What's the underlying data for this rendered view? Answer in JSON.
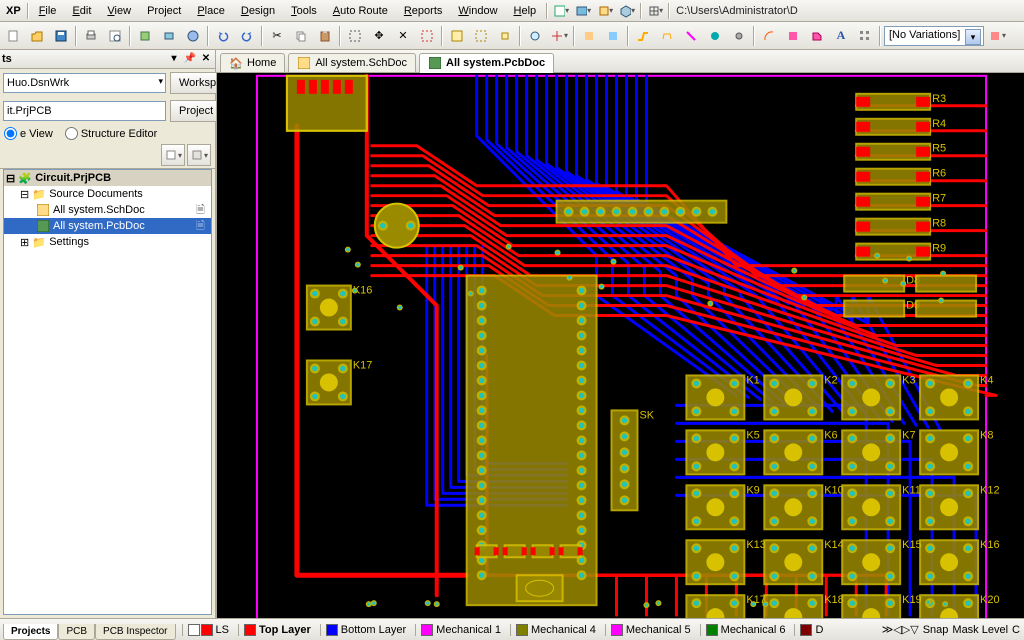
{
  "menu": {
    "dxp": "XP",
    "items": [
      "File",
      "Edit",
      "View",
      "Project",
      "Place",
      "Design",
      "Tools",
      "Auto Route",
      "Reports",
      "Window",
      "Help"
    ],
    "path": "C:\\Users\\Administrator\\D"
  },
  "toolbar": {
    "variations": "[No Variations]"
  },
  "panel": {
    "title": "ts",
    "workspace_value": "Huo.DsnWrk",
    "workspace_btn": "Workspace",
    "project_value": "it.PrjPCB",
    "project_btn": "Project",
    "radio_view": "e View",
    "radio_struct": "Structure Editor"
  },
  "tree": {
    "root": "Circuit.PrjPCB",
    "folder": "Source Documents",
    "doc_sch": "All system.SchDoc",
    "doc_pcb": "All system.PcbDoc",
    "settings": "Settings"
  },
  "doctabs": {
    "home": "Home",
    "sch": "All system.SchDoc",
    "pcb": "All system.PcbDoc"
  },
  "status": {
    "tabs": [
      "Projects",
      "PCB",
      "PCB Inspector"
    ],
    "ls": "LS",
    "right": [
      "Snap",
      "Mask Level",
      "C"
    ]
  },
  "layers": [
    {
      "label": "Top Layer",
      "color": "#ff0000",
      "bold": true
    },
    {
      "label": "Bottom Layer",
      "color": "#0000ff"
    },
    {
      "label": "Mechanical 1",
      "color": "#ff00ff"
    },
    {
      "label": "Mechanical 4",
      "color": "#808000"
    },
    {
      "label": "Mechanical 5",
      "color": "#ff00ff"
    },
    {
      "label": "Mechanical 6",
      "color": "#008000"
    },
    {
      "label": "D",
      "color": "#800000"
    }
  ],
  "pcb": {
    "board_outline": "#ff00ff",
    "top_color": "#ff0000",
    "bot_color": "#0000ff",
    "silk_color": "#d7c100",
    "pad_color": "#c0b000",
    "hole_color": "#20c4ba",
    "comp_fill": "#9a8a00",
    "bg": "#000000"
  }
}
